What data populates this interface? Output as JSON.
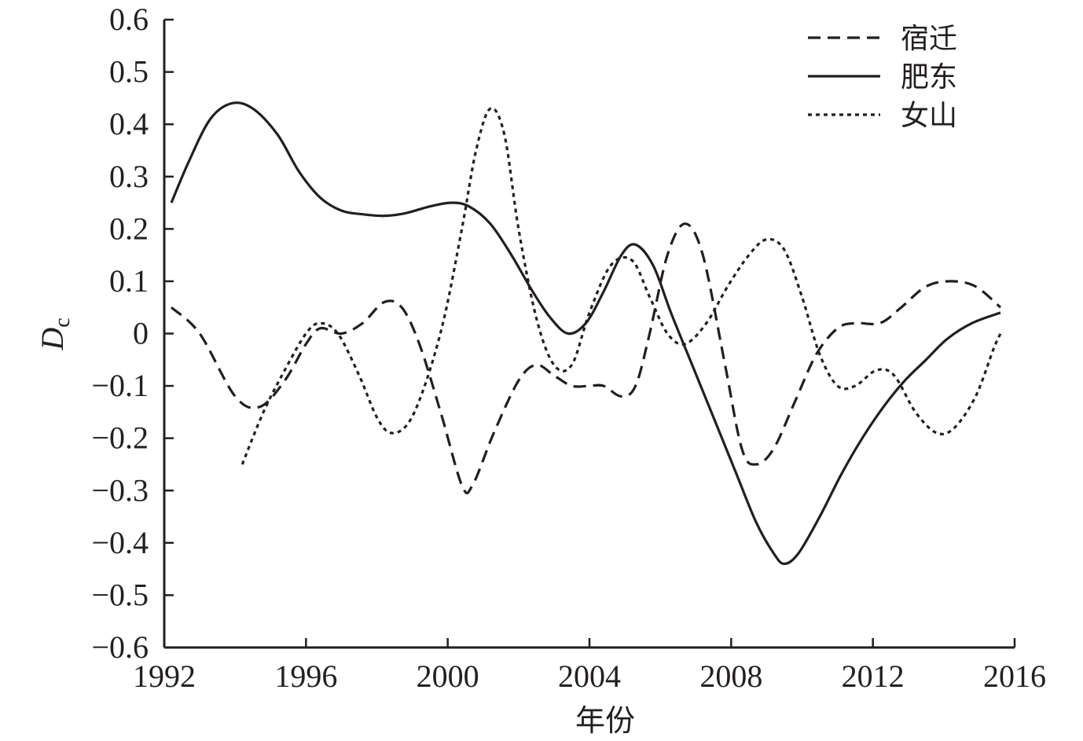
{
  "chart_data": {
    "type": "line",
    "xlabel": "年份",
    "ylabel_main": "D",
    "ylabel_sub": "c",
    "xlim": [
      1992,
      2016
    ],
    "ylim": [
      -0.6,
      0.6
    ],
    "xticks": [
      1992,
      1996,
      2000,
      2004,
      2008,
      2012,
      2016
    ],
    "yticks": [
      0.6,
      0.5,
      0.4,
      0.3,
      0.2,
      0.1,
      0,
      -0.1,
      -0.2,
      -0.3,
      -0.4,
      -0.5,
      -0.6
    ],
    "ytick_labels": [
      "0.6",
      "0.5",
      "0.4",
      "0.3",
      "0.2",
      "0.1",
      "0",
      "−0.1",
      "−0.2",
      "−0.3",
      "−0.4",
      "−0.5",
      "−0.6"
    ],
    "legend_position": "top-right",
    "grid": false,
    "series": [
      {
        "name": "宿迁",
        "style": "dashed",
        "color": "#231f20",
        "points": [
          [
            1992.2,
            0.05
          ],
          [
            1993.0,
            0.0
          ],
          [
            1994.0,
            -0.12
          ],
          [
            1994.7,
            -0.14
          ],
          [
            1995.4,
            -0.09
          ],
          [
            1996.0,
            -0.02
          ],
          [
            1996.4,
            0.01
          ],
          [
            1997.0,
            0.0
          ],
          [
            1997.6,
            0.02
          ],
          [
            1998.2,
            0.06
          ],
          [
            1998.7,
            0.05
          ],
          [
            1999.2,
            -0.02
          ],
          [
            1999.8,
            -0.15
          ],
          [
            2000.4,
            -0.29
          ],
          [
            2000.7,
            -0.29
          ],
          [
            2001.3,
            -0.19
          ],
          [
            2002.0,
            -0.09
          ],
          [
            2002.5,
            -0.06
          ],
          [
            2003.0,
            -0.08
          ],
          [
            2003.5,
            -0.1
          ],
          [
            2004.0,
            -0.1
          ],
          [
            2004.4,
            -0.1
          ],
          [
            2004.9,
            -0.12
          ],
          [
            2005.3,
            -0.1
          ],
          [
            2005.7,
            0.0
          ],
          [
            2006.2,
            0.15
          ],
          [
            2006.7,
            0.21
          ],
          [
            2007.2,
            0.15
          ],
          [
            2007.8,
            -0.05
          ],
          [
            2008.3,
            -0.22
          ],
          [
            2008.7,
            -0.25
          ],
          [
            2009.2,
            -0.22
          ],
          [
            2009.8,
            -0.13
          ],
          [
            2010.4,
            -0.04
          ],
          [
            2011.0,
            0.01
          ],
          [
            2011.5,
            0.02
          ],
          [
            2012.2,
            0.02
          ],
          [
            2012.8,
            0.05
          ],
          [
            2013.5,
            0.09
          ],
          [
            2014.2,
            0.1
          ],
          [
            2014.9,
            0.09
          ],
          [
            2015.6,
            0.05
          ]
        ]
      },
      {
        "name": "肥东",
        "style": "solid",
        "color": "#231f20",
        "points": [
          [
            1992.2,
            0.25
          ],
          [
            1992.7,
            0.33
          ],
          [
            1993.3,
            0.41
          ],
          [
            1993.9,
            0.44
          ],
          [
            1994.5,
            0.43
          ],
          [
            1995.2,
            0.38
          ],
          [
            1995.8,
            0.31
          ],
          [
            1996.4,
            0.26
          ],
          [
            1997.0,
            0.235
          ],
          [
            1997.6,
            0.228
          ],
          [
            1998.2,
            0.225
          ],
          [
            1998.8,
            0.23
          ],
          [
            1999.5,
            0.243
          ],
          [
            2000.1,
            0.25
          ],
          [
            2000.6,
            0.243
          ],
          [
            2001.2,
            0.21
          ],
          [
            2001.8,
            0.15
          ],
          [
            2002.4,
            0.08
          ],
          [
            2002.9,
            0.03
          ],
          [
            2003.4,
            0.0
          ],
          [
            2003.9,
            0.02
          ],
          [
            2004.4,
            0.08
          ],
          [
            2004.9,
            0.15
          ],
          [
            2005.3,
            0.17
          ],
          [
            2005.8,
            0.13
          ],
          [
            2006.3,
            0.04
          ],
          [
            2006.9,
            -0.06
          ],
          [
            2007.5,
            -0.16
          ],
          [
            2008.1,
            -0.26
          ],
          [
            2008.7,
            -0.36
          ],
          [
            2009.2,
            -0.42
          ],
          [
            2009.5,
            -0.44
          ],
          [
            2009.9,
            -0.42
          ],
          [
            2010.5,
            -0.35
          ],
          [
            2011.1,
            -0.27
          ],
          [
            2011.7,
            -0.2
          ],
          [
            2012.3,
            -0.14
          ],
          [
            2012.9,
            -0.09
          ],
          [
            2013.5,
            -0.05
          ],
          [
            2014.1,
            -0.01
          ],
          [
            2014.8,
            0.02
          ],
          [
            2015.6,
            0.04
          ]
        ]
      },
      {
        "name": "女山",
        "style": "dotted",
        "color": "#231f20",
        "points": [
          [
            1994.2,
            -0.25
          ],
          [
            1994.8,
            -0.15
          ],
          [
            1995.4,
            -0.07
          ],
          [
            1996.0,
            0.0
          ],
          [
            1996.4,
            0.02
          ],
          [
            1996.9,
            0.0
          ],
          [
            1997.5,
            -0.08
          ],
          [
            1998.0,
            -0.16
          ],
          [
            1998.4,
            -0.19
          ],
          [
            1998.9,
            -0.17
          ],
          [
            1999.4,
            -0.09
          ],
          [
            1999.9,
            0.03
          ],
          [
            2000.4,
            0.2
          ],
          [
            2000.8,
            0.35
          ],
          [
            2001.2,
            0.43
          ],
          [
            2001.6,
            0.38
          ],
          [
            2002.0,
            0.2
          ],
          [
            2002.5,
            0.03
          ],
          [
            2003.0,
            -0.06
          ],
          [
            2003.5,
            -0.06
          ],
          [
            2004.0,
            0.04
          ],
          [
            2004.6,
            0.13
          ],
          [
            2005.2,
            0.14
          ],
          [
            2005.7,
            0.07
          ],
          [
            2006.2,
            0.0
          ],
          [
            2006.7,
            -0.02
          ],
          [
            2007.3,
            0.02
          ],
          [
            2007.9,
            0.09
          ],
          [
            2008.5,
            0.15
          ],
          [
            2009.0,
            0.18
          ],
          [
            2009.5,
            0.16
          ],
          [
            2010.0,
            0.07
          ],
          [
            2010.5,
            -0.04
          ],
          [
            2011.0,
            -0.1
          ],
          [
            2011.5,
            -0.1
          ],
          [
            2012.1,
            -0.07
          ],
          [
            2012.6,
            -0.08
          ],
          [
            2013.2,
            -0.15
          ],
          [
            2013.8,
            -0.19
          ],
          [
            2014.3,
            -0.18
          ],
          [
            2014.9,
            -0.12
          ],
          [
            2015.4,
            -0.03
          ],
          [
            2015.6,
            0.0
          ]
        ]
      }
    ]
  }
}
